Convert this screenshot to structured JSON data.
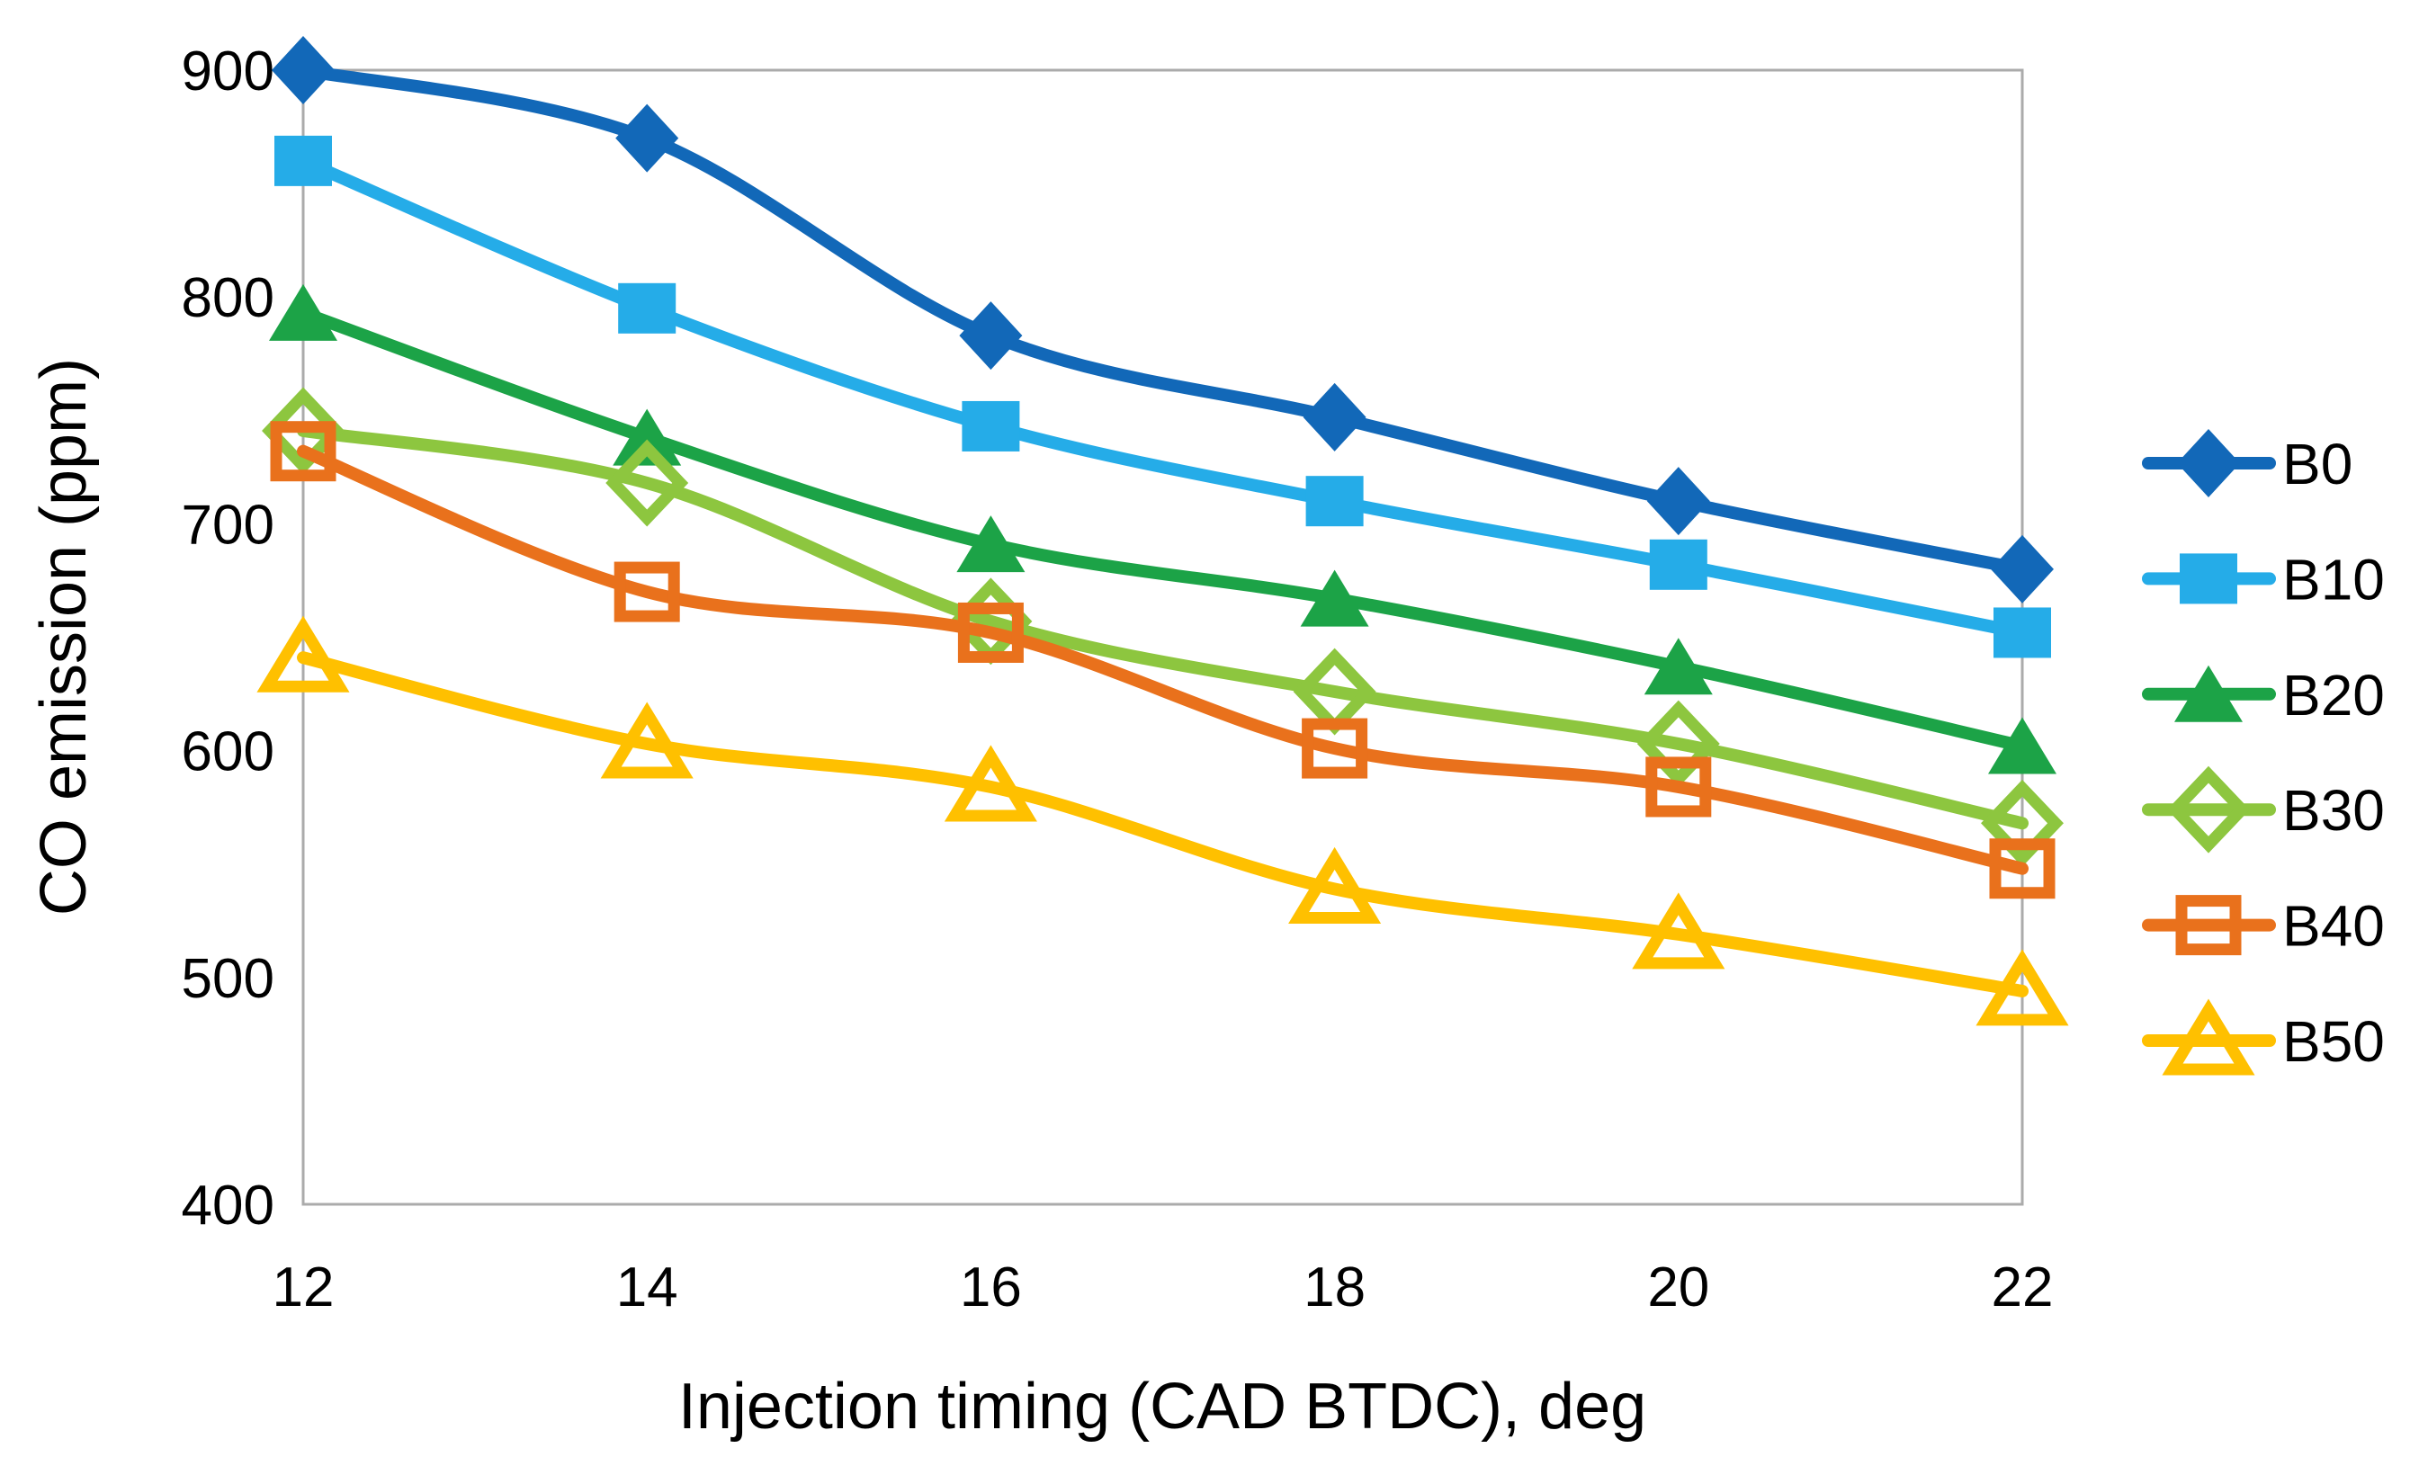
{
  "chart_data": {
    "type": "line",
    "title": "",
    "xlabel": "Injection timing (CAD BTDC), deg",
    "ylabel": "CO emission (ppm)",
    "x": [
      12,
      14,
      16,
      18,
      20,
      22
    ],
    "x_ticks": [
      12,
      14,
      16,
      18,
      20,
      22
    ],
    "y_ticks": [
      400,
      500,
      600,
      700,
      800,
      900
    ],
    "xlim": [
      12,
      22
    ],
    "ylim": [
      400,
      900
    ],
    "grid": false,
    "legend_position": "right",
    "plot_border_color": "#ababab",
    "text_color": "#000000",
    "series": [
      {
        "name": "B0",
        "color": "#1268B8",
        "marker": "diamond-filled",
        "values": [
          900,
          870,
          783,
          747,
          710,
          680
        ]
      },
      {
        "name": "B10",
        "color": "#25ACE8",
        "marker": "square-filled",
        "values": [
          860,
          795,
          743,
          710,
          682,
          652
        ]
      },
      {
        "name": "B20",
        "color": "#1CA347",
        "marker": "triangle-filled",
        "values": [
          793,
          738,
          691,
          667,
          637,
          602
        ]
      },
      {
        "name": "B30",
        "color": "#8DC63F",
        "marker": "diamond-open",
        "values": [
          741,
          718,
          657,
          626,
          603,
          568
        ]
      },
      {
        "name": "B40",
        "color": "#E9711C",
        "marker": "square-open",
        "values": [
          732,
          670,
          652,
          601,
          584,
          548
        ]
      },
      {
        "name": "B50",
        "color": "#FFC000",
        "marker": "triangle-open",
        "values": [
          641,
          603,
          584,
          539,
          519,
          494
        ]
      }
    ]
  }
}
